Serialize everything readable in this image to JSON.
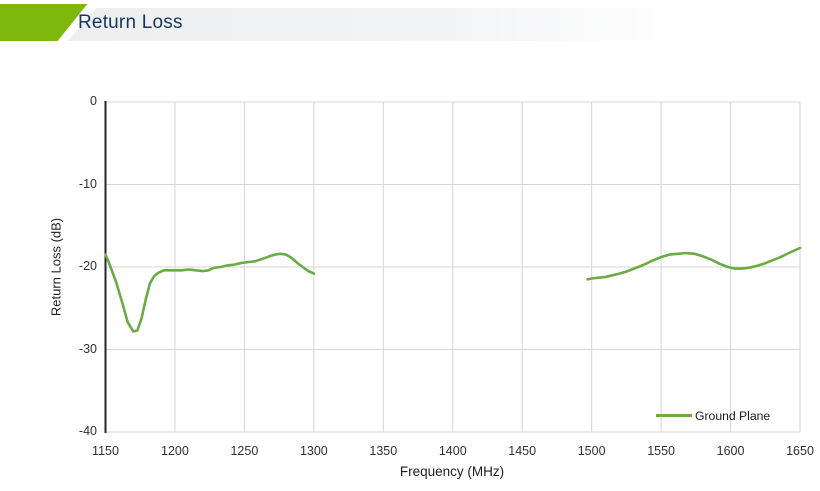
{
  "header": {
    "title": "Return Loss",
    "accent_green": "#7db80a",
    "title_color": "#17365d"
  },
  "chart_data": {
    "type": "line",
    "title": "Return Loss",
    "xlabel": "Frequency (MHz)",
    "ylabel": "Return Loss (dB)",
    "xlim": [
      1150,
      1650
    ],
    "ylim": [
      -40,
      0
    ],
    "x_ticks": [
      1150,
      1200,
      1250,
      1300,
      1350,
      1400,
      1450,
      1500,
      1550,
      1600,
      1650
    ],
    "y_ticks": [
      0,
      -10,
      -20,
      -30,
      -40
    ],
    "grid": true,
    "gridline_color": "#d6d6d6",
    "axis_line_color": "#262626",
    "legend": {
      "position": "bottom-right-inside",
      "entries": [
        {
          "label": "Ground Plane",
          "color": "#6bab44"
        }
      ]
    },
    "series": [
      {
        "name": "Ground Plane",
        "color": "#6bab44",
        "segments": [
          {
            "points": [
              [
                1150,
                -18.5
              ],
              [
                1152,
                -19.3
              ],
              [
                1155,
                -20.6
              ],
              [
                1158,
                -22.0
              ],
              [
                1162,
                -24.3
              ],
              [
                1166,
                -26.7
              ],
              [
                1170,
                -27.8
              ],
              [
                1173,
                -27.7
              ],
              [
                1176,
                -26.2
              ],
              [
                1179,
                -23.9
              ],
              [
                1182,
                -22.0
              ],
              [
                1185,
                -21.1
              ],
              [
                1188,
                -20.7
              ],
              [
                1192,
                -20.4
              ],
              [
                1196,
                -20.4
              ],
              [
                1200,
                -20.4
              ],
              [
                1205,
                -20.4
              ],
              [
                1210,
                -20.3
              ],
              [
                1215,
                -20.4
              ],
              [
                1220,
                -20.5
              ],
              [
                1224,
                -20.4
              ],
              [
                1228,
                -20.1
              ],
              [
                1233,
                -20.0
              ],
              [
                1238,
                -19.8
              ],
              [
                1243,
                -19.7
              ],
              [
                1248,
                -19.5
              ],
              [
                1253,
                -19.4
              ],
              [
                1258,
                -19.3
              ],
              [
                1263,
                -19.0
              ],
              [
                1268,
                -18.7
              ],
              [
                1272,
                -18.5
              ],
              [
                1276,
                -18.4
              ],
              [
                1280,
                -18.5
              ],
              [
                1284,
                -18.9
              ],
              [
                1288,
                -19.5
              ],
              [
                1292,
                -20.0
              ],
              [
                1296,
                -20.5
              ],
              [
                1300,
                -20.8
              ]
            ]
          },
          {
            "points": [
              [
                1497,
                -21.5
              ],
              [
                1500,
                -21.4
              ],
              [
                1505,
                -21.3
              ],
              [
                1510,
                -21.2
              ],
              [
                1515,
                -21.0
              ],
              [
                1520,
                -20.8
              ],
              [
                1526,
                -20.5
              ],
              [
                1532,
                -20.1
              ],
              [
                1538,
                -19.7
              ],
              [
                1544,
                -19.2
              ],
              [
                1550,
                -18.8
              ],
              [
                1556,
                -18.5
              ],
              [
                1562,
                -18.4
              ],
              [
                1568,
                -18.3
              ],
              [
                1574,
                -18.4
              ],
              [
                1580,
                -18.7
              ],
              [
                1586,
                -19.1
              ],
              [
                1592,
                -19.6
              ],
              [
                1598,
                -20.0
              ],
              [
                1603,
                -20.2
              ],
              [
                1608,
                -20.2
              ],
              [
                1613,
                -20.1
              ],
              [
                1618,
                -19.9
              ],
              [
                1624,
                -19.6
              ],
              [
                1630,
                -19.2
              ],
              [
                1636,
                -18.8
              ],
              [
                1642,
                -18.3
              ],
              [
                1646,
                -18.0
              ],
              [
                1650,
                -17.7
              ]
            ]
          }
        ]
      }
    ]
  }
}
